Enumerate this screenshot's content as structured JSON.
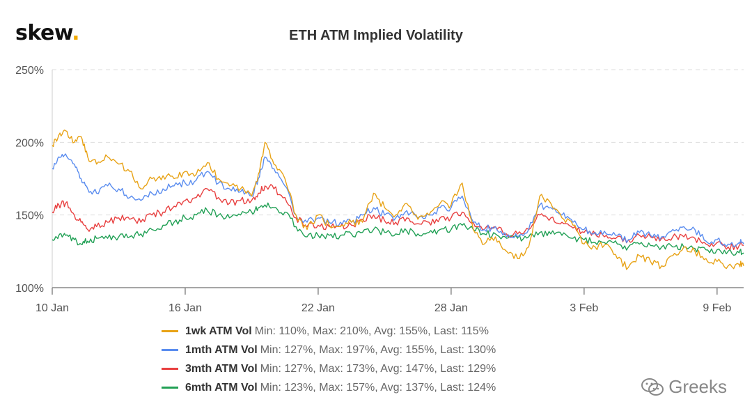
{
  "brand": {
    "name": "skew",
    "dot": "."
  },
  "watermark": {
    "text": "Greeks",
    "icon": "wechat-icon"
  },
  "chart_data": {
    "type": "line",
    "title": "ETH ATM Implied Volatility",
    "xlabel": "",
    "ylabel": "",
    "ylim": [
      100,
      250
    ],
    "yticks": [
      100,
      150,
      200,
      250
    ],
    "ytick_labels": [
      "100%",
      "150%",
      "200%",
      "250%"
    ],
    "xlim": [
      0,
      31.2
    ],
    "xticks": [
      0,
      6,
      12,
      18,
      24,
      30
    ],
    "xtick_labels": [
      "10 Jan",
      "16 Jan",
      "22 Jan",
      "28 Jan",
      "3 Feb",
      "9 Feb"
    ],
    "grid": "horizontal dashed",
    "legend_position": "bottom",
    "series": [
      {
        "name": "1wk ATM Vol",
        "color": "#e8a317",
        "stats": "Min: 110%, Max: 210%, Avg: 155%, Last: 115%",
        "x": [
          0,
          0.3,
          0.6,
          1,
          1.3,
          1.6,
          2,
          2.5,
          3,
          3.5,
          4,
          4.5,
          5,
          5.5,
          6,
          6.5,
          7,
          7.5,
          8,
          8.5,
          9,
          9.3,
          9.6,
          10,
          10.5,
          11,
          11.5,
          12,
          12.5,
          13,
          13.5,
          14,
          14.5,
          15,
          15.5,
          16,
          16.5,
          17,
          17.5,
          18,
          18.5,
          19,
          19.5,
          20,
          20.5,
          21,
          21.5,
          22,
          22.5,
          23,
          23.5,
          24,
          24.5,
          25,
          25.5,
          26,
          26.5,
          27,
          27.5,
          28,
          28.5,
          29,
          29.5,
          30,
          30.5,
          31,
          31.2
        ],
        "y": [
          198,
          205,
          208,
          200,
          204,
          190,
          185,
          190,
          185,
          180,
          168,
          175,
          177,
          175,
          180,
          178,
          186,
          175,
          170,
          168,
          163,
          178,
          200,
          185,
          175,
          150,
          140,
          150,
          143,
          142,
          145,
          145,
          165,
          155,
          150,
          158,
          147,
          150,
          158,
          157,
          172,
          140,
          130,
          135,
          125,
          120,
          128,
          163,
          158,
          148,
          143,
          130,
          128,
          130,
          120,
          114,
          122,
          118,
          115,
          122,
          128,
          125,
          120,
          118,
          115,
          116,
          115
        ]
      },
      {
        "name": "1mth ATM Vol",
        "color": "#5b8def",
        "stats": "Min: 127%, Max: 197%, Avg: 155%, Last: 130%",
        "x": [
          0,
          0.3,
          0.6,
          1,
          1.3,
          1.6,
          2,
          2.5,
          3,
          3.5,
          4,
          4.5,
          5,
          5.5,
          6,
          6.5,
          7,
          7.5,
          8,
          8.5,
          9,
          9.3,
          9.6,
          10,
          10.5,
          11,
          11.5,
          12,
          12.5,
          13,
          13.5,
          14,
          14.5,
          15,
          15.5,
          16,
          16.5,
          17,
          17.5,
          18,
          18.5,
          19,
          19.5,
          20,
          20.5,
          21,
          21.5,
          22,
          22.5,
          23,
          23.5,
          24,
          24.5,
          25,
          25.5,
          26,
          26.5,
          27,
          27.5,
          28,
          28.5,
          29,
          29.5,
          30,
          30.5,
          31,
          31.2
        ],
        "y": [
          182,
          190,
          192,
          185,
          175,
          168,
          165,
          170,
          168,
          162,
          160,
          165,
          168,
          170,
          172,
          174,
          180,
          172,
          168,
          166,
          163,
          175,
          190,
          182,
          170,
          150,
          145,
          148,
          145,
          145,
          145,
          150,
          155,
          150,
          148,
          153,
          148,
          150,
          155,
          155,
          163,
          145,
          140,
          142,
          135,
          135,
          140,
          157,
          155,
          150,
          145,
          140,
          138,
          137,
          136,
          133,
          138,
          136,
          135,
          140,
          142,
          140,
          132,
          133,
          130,
          131,
          130
        ]
      },
      {
        "name": "3mth ATM Vol",
        "color": "#e84040",
        "stats": "Min: 127%, Max: 173%, Avg: 147%, Last: 129%",
        "x": [
          0,
          0.3,
          0.6,
          1,
          1.3,
          1.6,
          2,
          2.5,
          3,
          3.5,
          4,
          4.5,
          5,
          5.5,
          6,
          6.5,
          7,
          7.5,
          8,
          8.5,
          9,
          9.3,
          9.6,
          10,
          10.5,
          11,
          11.5,
          12,
          12.5,
          13,
          13.5,
          14,
          14.5,
          15,
          15.5,
          16,
          16.5,
          17,
          17.5,
          18,
          18.5,
          19,
          19.5,
          20,
          20.5,
          21,
          21.5,
          22,
          22.5,
          23,
          23.5,
          24,
          24.5,
          25,
          25.5,
          26,
          26.5,
          27,
          27.5,
          28,
          28.5,
          29,
          29.5,
          30,
          30.5,
          31,
          31.2
        ],
        "y": [
          152,
          157,
          158,
          150,
          145,
          140,
          142,
          145,
          148,
          147,
          145,
          150,
          152,
          156,
          160,
          162,
          168,
          162,
          158,
          160,
          160,
          165,
          170,
          168,
          162,
          148,
          142,
          143,
          142,
          142,
          143,
          147,
          150,
          146,
          145,
          148,
          144,
          145,
          148,
          148,
          152,
          145,
          140,
          142,
          137,
          137,
          140,
          150,
          148,
          145,
          141,
          138,
          137,
          136,
          135,
          133,
          136,
          135,
          134,
          135,
          135,
          134,
          130,
          131,
          128,
          129,
          129
        ]
      },
      {
        "name": "6mth ATM Vol",
        "color": "#21a055",
        "stats": "Min: 123%, Max: 157%, Avg: 137%, Last: 124%",
        "x": [
          0,
          0.3,
          0.6,
          1,
          1.3,
          1.6,
          2,
          2.5,
          3,
          3.5,
          4,
          4.5,
          5,
          5.5,
          6,
          6.5,
          7,
          7.5,
          8,
          8.5,
          9,
          9.3,
          9.6,
          10,
          10.5,
          11,
          11.5,
          12,
          12.5,
          13,
          13.5,
          14,
          14.5,
          15,
          15.5,
          16,
          16.5,
          17,
          17.5,
          18,
          18.5,
          19,
          19.5,
          20,
          20.5,
          21,
          21.5,
          22,
          22.5,
          23,
          23.5,
          24,
          24.5,
          25,
          25.5,
          26,
          26.5,
          27,
          27.5,
          28,
          28.5,
          29,
          29.5,
          30,
          30.5,
          31,
          31.2
        ],
        "y": [
          133,
          136,
          136,
          133,
          130,
          132,
          134,
          134,
          135,
          135,
          137,
          140,
          143,
          145,
          148,
          150,
          153,
          150,
          148,
          150,
          152,
          155,
          157,
          155,
          152,
          142,
          135,
          136,
          136,
          136,
          137,
          138,
          140,
          138,
          137,
          139,
          137,
          138,
          140,
          140,
          143,
          140,
          137,
          137,
          134,
          134,
          135,
          138,
          137,
          136,
          134,
          133,
          131,
          130,
          130,
          128,
          130,
          129,
          128,
          128,
          128,
          127,
          126,
          126,
          125,
          124,
          124
        ]
      }
    ]
  }
}
